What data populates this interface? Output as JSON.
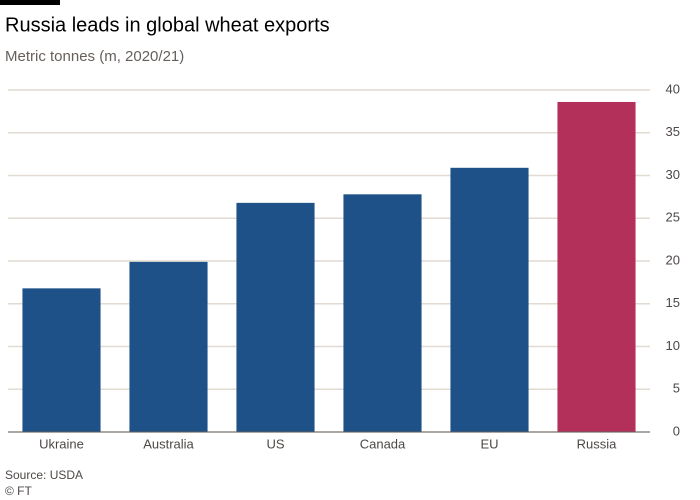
{
  "chart_data": {
    "type": "bar",
    "title": "Russia leads in global wheat exports",
    "subtitle": "Metric tonnes (m, 2020/21)",
    "categories": [
      "Ukraine",
      "Australia",
      "US",
      "Canada",
      "EU",
      "Russia"
    ],
    "values": [
      16.8,
      19.9,
      26.8,
      27.8,
      30.9,
      38.6
    ],
    "colors": [
      "#1f5189",
      "#1f5189",
      "#1f5189",
      "#1f5189",
      "#1f5189",
      "#b3305b"
    ],
    "ylim": [
      0,
      40
    ],
    "yticks": [
      0,
      5,
      10,
      15,
      20,
      25,
      30,
      35,
      40
    ],
    "grid": true,
    "source": "Source: USDA",
    "credit": "© FT"
  }
}
